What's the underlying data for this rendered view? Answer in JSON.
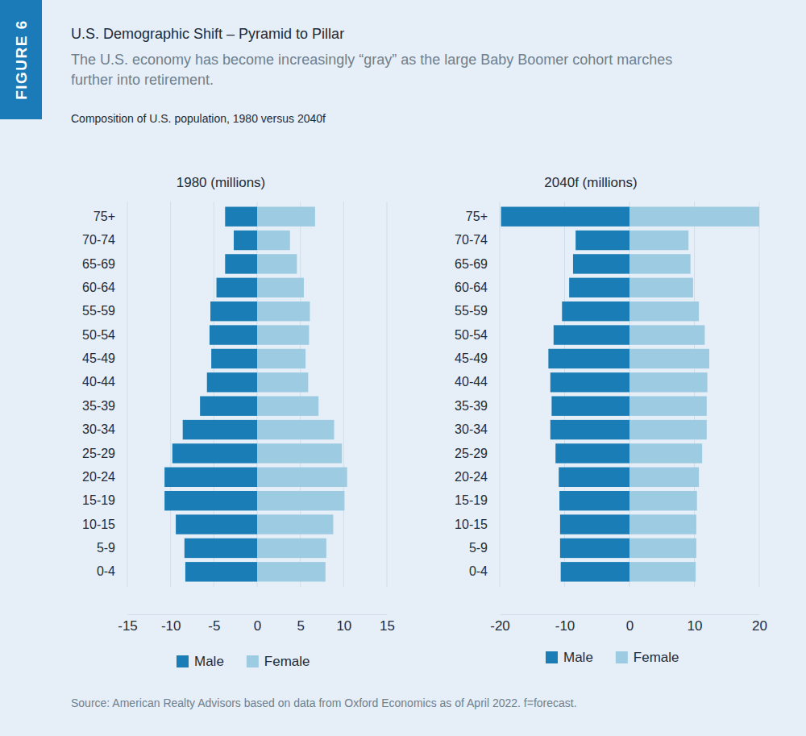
{
  "header": {
    "figure_label": "FIGURE 6",
    "title": "U.S. Demographic Shift – Pyramid to Pillar",
    "subtitle": "The U.S. economy has become increasingly “gray” as the large Baby Boomer cohort marches further into retirement.",
    "note": "Composition of U.S. population, 1980 versus 2040f"
  },
  "source": "Source: American Realty Advisors based on data from Oxford Economics as of April 2022. f=forecast.",
  "chart_data": [
    {
      "type": "bar",
      "orientation": "horizontal",
      "title": "1980 (millions)",
      "categories": [
        "75+",
        "70-74",
        "65-69",
        "60-64",
        "55-59",
        "50-54",
        "45-49",
        "40-44",
        "35-39",
        "30-34",
        "25-29",
        "20-24",
        "15-19",
        "10-15",
        "5-9",
        "0-4"
      ],
      "series": [
        {
          "name": "Male",
          "color": "#1a7db5",
          "values": [
            -3.7,
            -2.7,
            -3.7,
            -4.7,
            -5.4,
            -5.5,
            -5.3,
            -5.8,
            -6.6,
            -8.6,
            -9.8,
            -10.7,
            -10.7,
            -9.4,
            -8.4,
            -8.3
          ]
        },
        {
          "name": "Female",
          "color": "#9dcbe2",
          "values": [
            6.7,
            3.8,
            4.6,
            5.4,
            6.1,
            6.0,
            5.6,
            5.9,
            7.1,
            8.9,
            9.8,
            10.4,
            10.1,
            8.8,
            8.0,
            7.9
          ]
        }
      ],
      "xlim": [
        -15,
        15
      ],
      "xticks": [
        -15,
        -10,
        -5,
        0,
        5,
        10,
        15
      ],
      "grid": true,
      "legend": "bottom"
    },
    {
      "type": "bar",
      "orientation": "horizontal",
      "title": "2040f (millions)",
      "categories": [
        "75+",
        "70-74",
        "65-69",
        "60-64",
        "55-59",
        "50-54",
        "45-49",
        "40-44",
        "35-39",
        "30-34",
        "25-29",
        "20-24",
        "15-19",
        "10-15",
        "5-9",
        "0-4"
      ],
      "series": [
        {
          "name": "Male",
          "color": "#1a7db5",
          "values": [
            -19.8,
            -8.3,
            -8.7,
            -9.3,
            -10.4,
            -11.7,
            -12.5,
            -12.2,
            -12.0,
            -12.2,
            -11.4,
            -10.9,
            -10.8,
            -10.7,
            -10.7,
            -10.6
          ]
        },
        {
          "name": "Female",
          "color": "#9dcbe2",
          "values": [
            20.0,
            9.1,
            9.4,
            9.8,
            10.7,
            11.6,
            12.3,
            12.0,
            11.9,
            11.9,
            11.2,
            10.7,
            10.4,
            10.3,
            10.3,
            10.2
          ]
        }
      ],
      "xlim": [
        -20,
        20
      ],
      "xticks": [
        -20,
        -10,
        0,
        10,
        20
      ],
      "grid": true,
      "legend": "bottom"
    }
  ]
}
